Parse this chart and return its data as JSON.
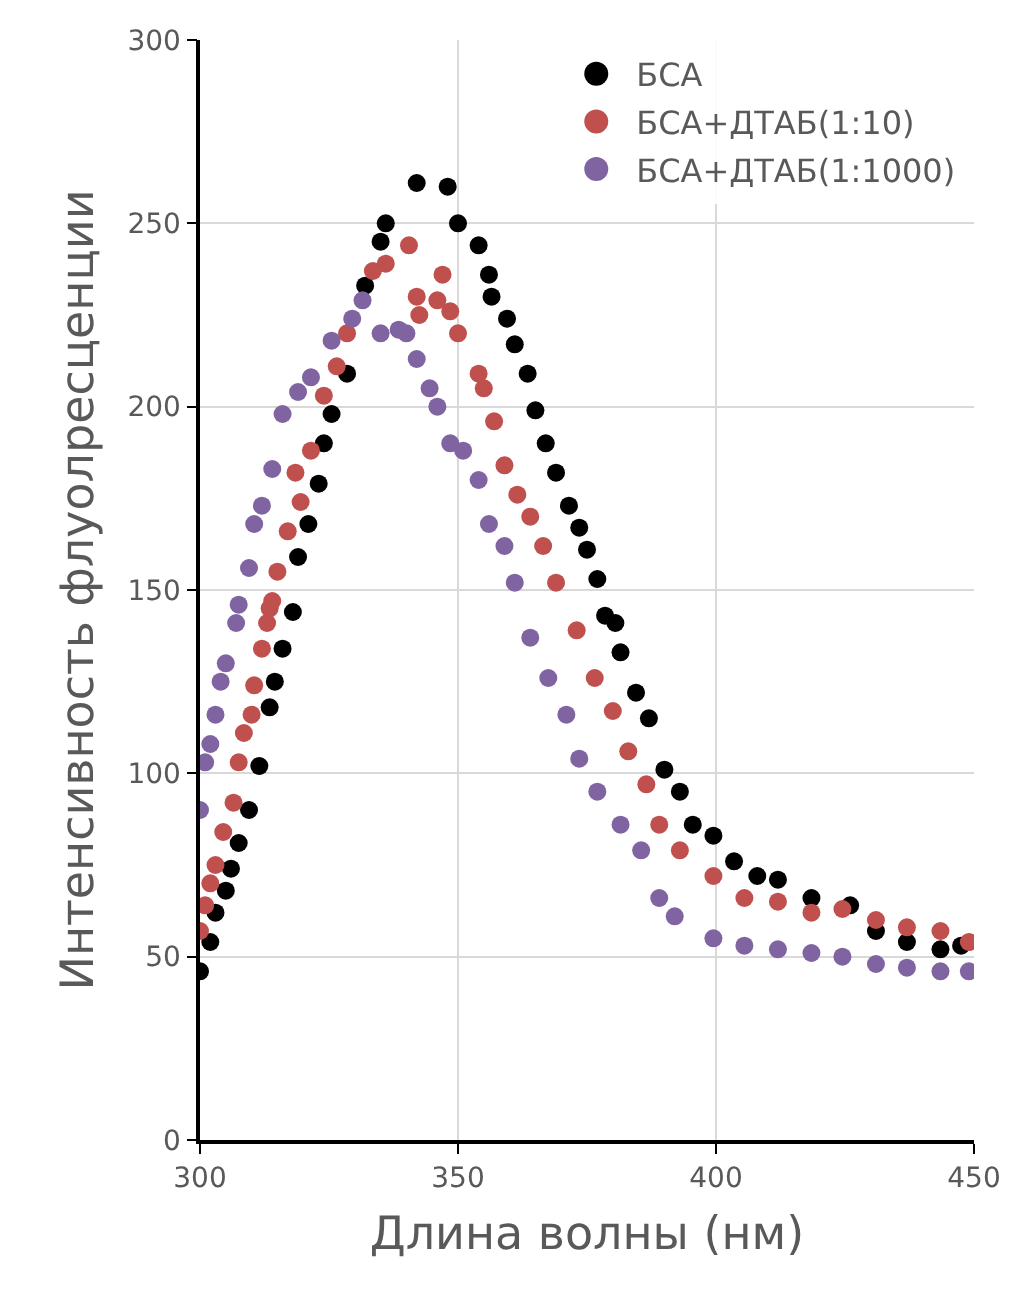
{
  "chart_data": {
    "type": "scatter",
    "xlabel": "Длина волны (нм)",
    "ylabel": "Интенсивность флуолресценции",
    "xlim": [
      300,
      450
    ],
    "xticks": [
      300,
      350,
      400,
      450
    ],
    "ylim": [
      0,
      300
    ],
    "yticks": [
      0,
      50,
      100,
      150,
      200,
      250,
      300
    ],
    "grid": true,
    "legend": "top right",
    "marker": "circle",
    "series": [
      {
        "name": "БСА",
        "color": "#000000",
        "x": [
          300,
          302,
          303,
          305,
          306,
          307.5,
          309.5,
          311.5,
          313.5,
          314.5,
          316,
          318,
          319,
          321,
          323,
          324,
          325.5,
          328.5,
          332,
          335,
          336,
          342,
          348,
          350,
          354,
          356,
          356.5,
          359.5,
          361,
          363.5,
          365,
          367,
          369,
          371.5,
          373.5,
          375,
          377,
          378.5,
          380.5,
          381.5,
          384.5,
          387,
          390,
          393,
          395.5,
          399.5,
          403.5,
          408,
          412,
          418.5,
          426,
          431,
          437,
          443.5,
          447.5
        ],
        "values": [
          46,
          54,
          62,
          68,
          74,
          81,
          90,
          102,
          118,
          125,
          134,
          144,
          159,
          168,
          179,
          190,
          198,
          209,
          233,
          245,
          250,
          261,
          260,
          250,
          244,
          236,
          230,
          224,
          217,
          209,
          199,
          190,
          182,
          173,
          167,
          161,
          153,
          143,
          141,
          133,
          122,
          115,
          101,
          95,
          86,
          83,
          76,
          72,
          71,
          66,
          64,
          57,
          54,
          52,
          53
        ]
      },
      {
        "name": "БСА+ДТАБ(1:10)",
        "color": "#c0504d",
        "x": [
          300,
          301,
          302,
          303,
          304.5,
          306.5,
          307.5,
          308.5,
          310,
          310.5,
          312,
          313.5,
          313,
          314,
          315,
          317,
          319.5,
          318.5,
          321.5,
          324,
          326.5,
          328.5,
          333.5,
          336,
          340.5,
          342,
          342.5,
          346,
          347,
          348.5,
          350,
          354,
          355,
          357,
          359,
          361.5,
          364,
          366.5,
          369,
          373,
          376.5,
          380,
          383,
          386.5,
          389,
          393,
          399.5,
          405.5,
          412,
          418.5,
          424.5,
          431,
          437,
          443.5,
          449
        ],
        "values": [
          57,
          64,
          70,
          75,
          84,
          92,
          103,
          111,
          116,
          124,
          134,
          145,
          141,
          147,
          155,
          166,
          174,
          182,
          188,
          203,
          211,
          220,
          237,
          239,
          244,
          230,
          225,
          229,
          236,
          226,
          220,
          209,
          205,
          196,
          184,
          176,
          170,
          162,
          152,
          139,
          126,
          117,
          106,
          97,
          86,
          79,
          72,
          66,
          65,
          62,
          63,
          60,
          58,
          57,
          54
        ]
      },
      {
        "name": "БСА+ДТАБ(1:1000)",
        "color": "#8064a2",
        "x": [
          300,
          301,
          302,
          303,
          304,
          305,
          307,
          307.5,
          309.5,
          310.5,
          312,
          314,
          316,
          319,
          321.5,
          325.5,
          329.5,
          331.5,
          335,
          338.5,
          340,
          342,
          344.5,
          346,
          348.5,
          351,
          354,
          356,
          359,
          361,
          364,
          367.5,
          371,
          373.5,
          377,
          381.5,
          385.5,
          389,
          392,
          399.5,
          405.5,
          412,
          418.5,
          424.5,
          431,
          437,
          443.5,
          449
        ],
        "values": [
          90,
          103,
          108,
          116,
          125,
          130,
          141,
          146,
          156,
          168,
          173,
          183,
          198,
          204,
          208,
          218,
          224,
          229,
          220,
          221,
          220,
          213,
          205,
          200,
          190,
          188,
          180,
          168,
          162,
          152,
          137,
          126,
          116,
          104,
          95,
          86,
          79,
          66,
          61,
          55,
          53,
          52,
          51,
          50,
          48,
          47,
          46,
          46
        ]
      }
    ]
  }
}
